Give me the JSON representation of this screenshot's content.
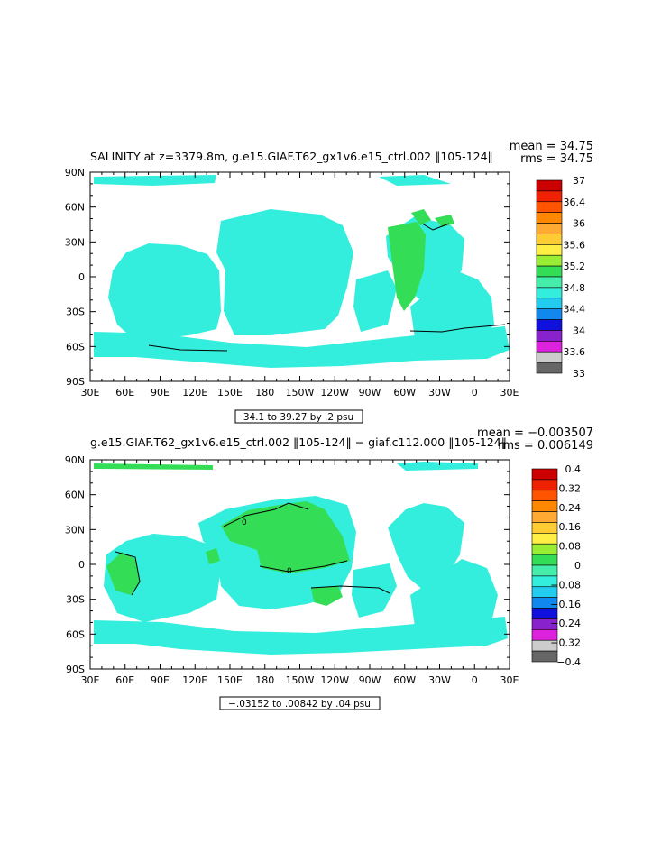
{
  "panels": [
    {
      "title": "SALINITY at z=3379.8m, g.e15.GIAF.T62_gx1v6.e15_ctrl.002 ‖105-124‖",
      "mean_label": "mean = 34.75",
      "rms_label": "rms = 34.75",
      "range_label": "34.1 to 39.27 by .2 psu",
      "colorbar": {
        "colors": [
          "#cc0000",
          "#ee2200",
          "#ff5500",
          "#ff8800",
          "#ffaa33",
          "#ffcc33",
          "#ffee44",
          "#99ee33",
          "#33dd55",
          "#44eeaa",
          "#33eedd",
          "#22ccee",
          "#1188ee",
          "#1111dd",
          "#8822cc",
          "#dd22dd",
          "#cccccc",
          "#666666"
        ],
        "tick_labels": [
          "37",
          "36.4",
          "36",
          "35.6",
          "35.2",
          "34.8",
          "34.4",
          "34",
          "33.6",
          "33"
        ]
      },
      "map": {
        "ocean_color": "#33eedd",
        "anomaly_color": "#33dd55"
      }
    },
    {
      "title": "g.e15.GIAF.T62_gx1v6.e15_ctrl.002 ‖105-124‖ − giaf.c112.000 ‖105-124‖",
      "mean_label": "mean = −0.003507",
      "rms_label": "rms = 0.006149",
      "range_label": "−.03152 to .00842 by .04 psu",
      "contour_label": "0",
      "colorbar": {
        "colors": [
          "#cc0000",
          "#ee2200",
          "#ff5500",
          "#ff8800",
          "#ffaa33",
          "#ffcc33",
          "#ffee44",
          "#99ee33",
          "#33dd55",
          "#44eeaa",
          "#33eedd",
          "#22ccee",
          "#1188ee",
          "#1111dd",
          "#8822cc",
          "#dd22dd",
          "#cccccc",
          "#666666"
        ],
        "tick_labels": [
          "0.4",
          "0.32",
          "0.24",
          "0.16",
          "0.08",
          "0",
          "−0.08",
          "−0.16",
          "−0.24",
          "−0.32",
          "−0.4"
        ]
      },
      "map": {
        "ocean_color": "#33eedd",
        "anomaly_color": "#33dd55"
      }
    }
  ],
  "axes": {
    "lat_labels": [
      "90N",
      "60N",
      "30N",
      "0",
      "30S",
      "60S",
      "90S"
    ],
    "lon_labels": [
      "30E",
      "60E",
      "90E",
      "120E",
      "150E",
      "180",
      "150W",
      "120W",
      "90W",
      "60W",
      "30W",
      "0",
      "30E"
    ]
  }
}
